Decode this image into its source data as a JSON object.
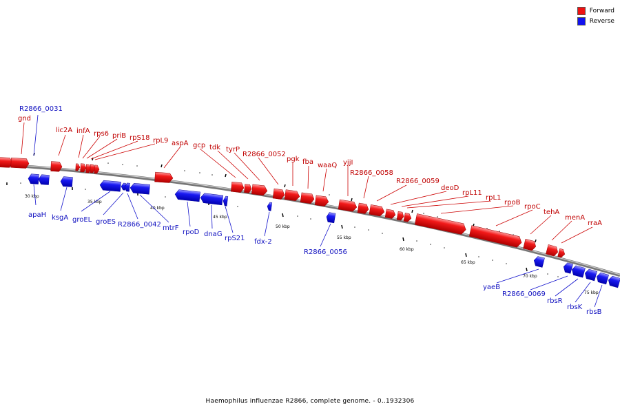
{
  "legend": {
    "forward": {
      "label": "Forward",
      "color": "#ee1111"
    },
    "reverse": {
      "label": "Reverse",
      "color": "#1111ee"
    }
  },
  "caption": "Haemophilus influenzae R2866, complete genome. - 0..1932306",
  "ticks": [
    "30 kbp",
    "35 kbp",
    "40 kbp",
    "45 kbp",
    "50 kbp",
    "55 kbp",
    "60 kbp",
    "65 kbp",
    "70 kbp",
    "75 kbp"
  ],
  "forward_genes": [
    "gnd",
    "lic2A",
    "infA",
    "rps6",
    "priB",
    "rpS18",
    "rpL9",
    "aspA",
    "gcp",
    "tdk",
    "tyrP",
    "R2866_0052",
    "pgk",
    "fba",
    "waaQ",
    "yjjI",
    "R2866_0058",
    "R2866_0059",
    "deoD",
    "rpL11",
    "rpL1",
    "rpoB",
    "rpoC",
    "tehA",
    "menA",
    "rraA"
  ],
  "reverse_genes": [
    "R2866_0031",
    "apaH",
    "ksgA",
    "groEL",
    "groES",
    "R2866_0042",
    "mtrF",
    "rpoD",
    "dnaG",
    "rpS21",
    "fdx-2",
    "R2866_0056",
    "yaeB",
    "R2866_0069",
    "rbsR",
    "rbsK",
    "rbsB"
  ]
}
